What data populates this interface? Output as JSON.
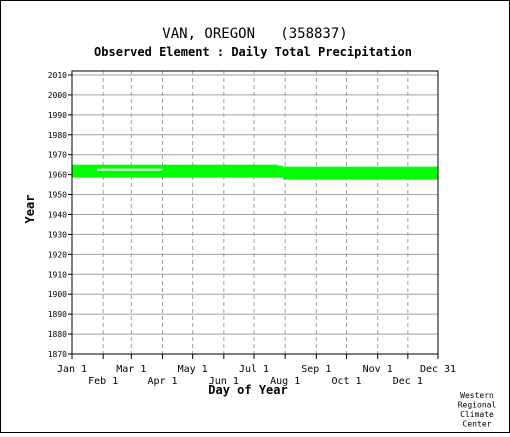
{
  "chart_data": {
    "type": "area",
    "title": "VAN, OREGON   (358837)",
    "subtitle": "Observed Element : Daily Total Precipitation",
    "xlabel": "Day of Year",
    "ylabel": "Year",
    "xlim": [
      1,
      365
    ],
    "ylim": [
      1870,
      2012
    ],
    "grid": true,
    "x_ticks_upper": [
      {
        "label": "Jan 1",
        "day": 1
      },
      {
        "label": "Mar 1",
        "day": 60
      },
      {
        "label": "May 1",
        "day": 121
      },
      {
        "label": "Jul 1",
        "day": 182
      },
      {
        "label": "Sep 1",
        "day": 244
      },
      {
        "label": "Nov 1",
        "day": 305
      },
      {
        "label": "Dec 31",
        "day": 365
      }
    ],
    "x_ticks_lower": [
      {
        "label": "Feb 1",
        "day": 32
      },
      {
        "label": "Apr 1",
        "day": 91
      },
      {
        "label": "Jun 1",
        "day": 152
      },
      {
        "label": "Aug 1",
        "day": 213
      },
      {
        "label": "Oct 1",
        "day": 274
      },
      {
        "label": "Dec 1",
        "day": 335
      }
    ],
    "y_ticks": [
      2010,
      2000,
      1990,
      1980,
      1970,
      1960,
      1950,
      1940,
      1930,
      1920,
      1910,
      1900,
      1890,
      1880,
      1870
    ],
    "series": [
      {
        "color": "#00ff00",
        "bands": [
          {
            "start_day": 1,
            "end_day": 206,
            "start_year": 1958.5,
            "end_year": 1965
          },
          {
            "start_day": 206,
            "end_day": 211,
            "start_year": 1958.5,
            "end_year": 1964.5
          },
          {
            "start_day": 211,
            "end_day": 365,
            "start_year": 1957.5,
            "end_year": 1964
          }
        ],
        "gaps": [
          {
            "start_day": 26,
            "end_day": 91,
            "year": 1962.5
          }
        ]
      }
    ],
    "credit": [
      "Western",
      "Regional",
      "Climate",
      "Center"
    ]
  }
}
